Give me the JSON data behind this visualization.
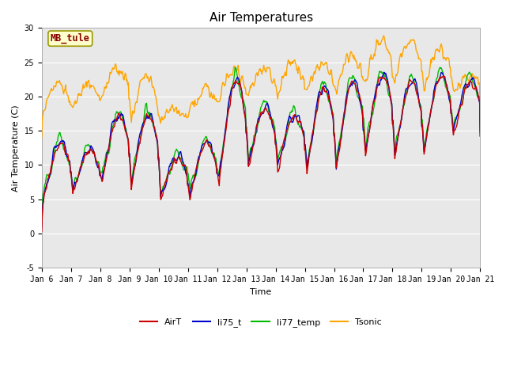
{
  "title": "Air Temperatures",
  "xlabel": "Time",
  "ylabel": "Air Temperature (C)",
  "ylim": [
    -5,
    30
  ],
  "n_days": 15,
  "x_tick_labels": [
    "Jan 6",
    "Jan 7",
    "Jan 8",
    "Jan 9",
    "Jan 10",
    "Jan 11",
    "Jan 12",
    "Jan 13",
    "Jan 14",
    "Jan 15",
    "Jan 16",
    "Jan 17",
    "Jan 18",
    "Jan 19",
    "Jan 20",
    "Jan 21"
  ],
  "colors": {
    "AirT": "#cc0000",
    "li75_t": "#0000cc",
    "li77_temp": "#00bb00",
    "Tsonic": "#ffa500"
  },
  "label_box": {
    "text": "MB_tule",
    "facecolor": "#ffffcc",
    "edgecolor": "#999900",
    "textcolor": "#880000"
  },
  "axes_bg": "#e8e8e8",
  "linewidth": 1.0,
  "title_fontsize": 11,
  "tick_fontsize": 7,
  "label_fontsize": 8,
  "legend_fontsize": 8
}
